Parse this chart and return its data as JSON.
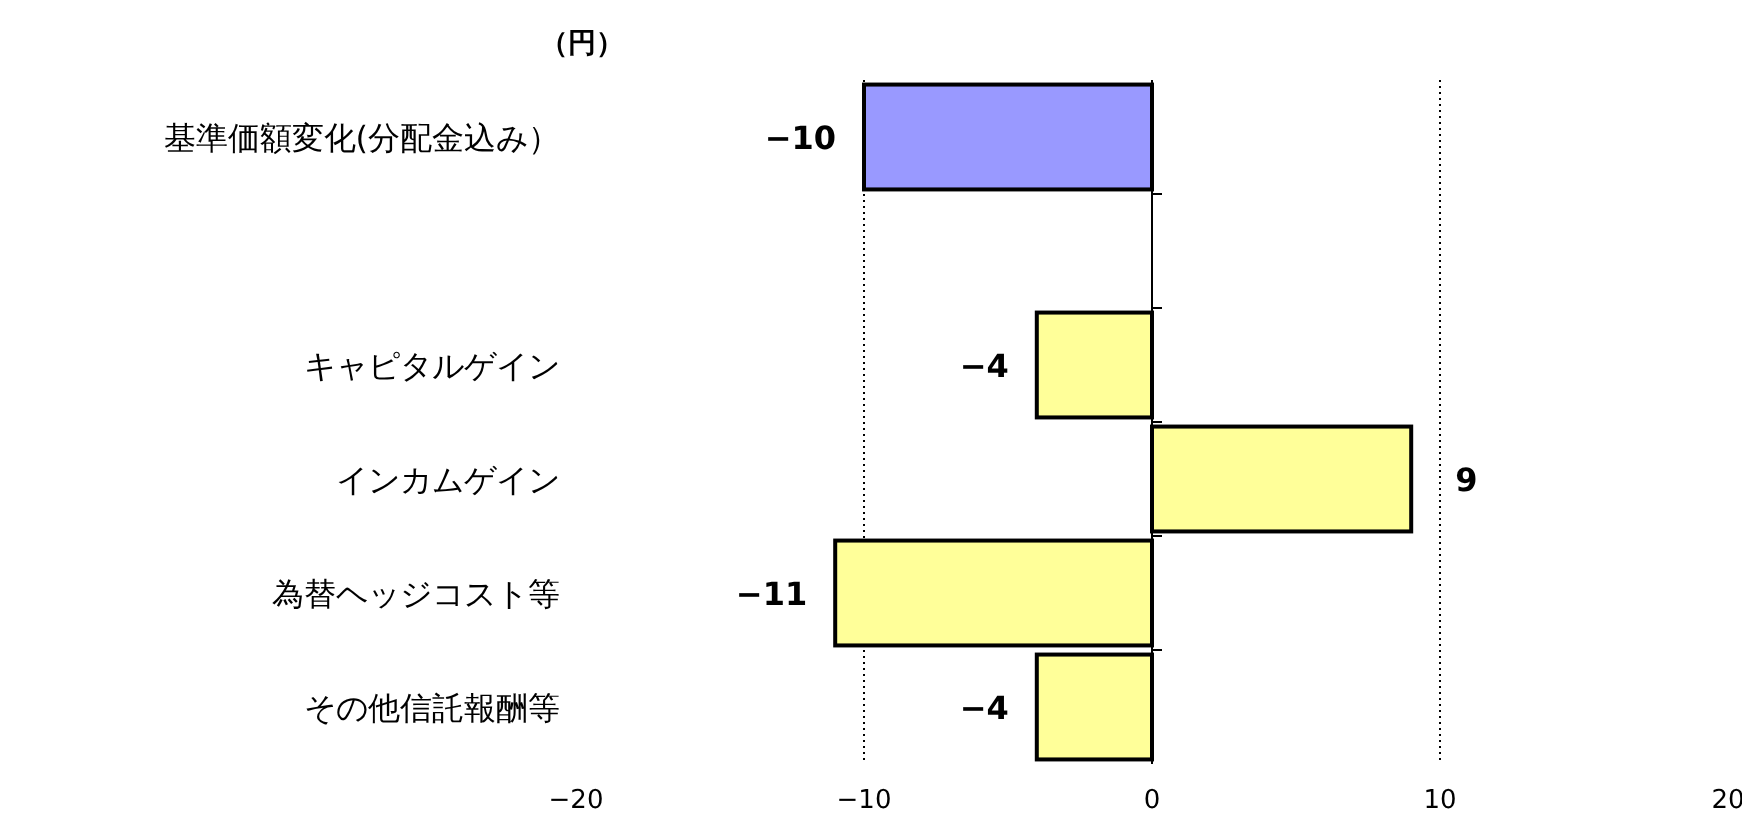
{
  "chart_data": {
    "type": "bar",
    "orientation": "horizontal",
    "xlabel": "（円）",
    "categories": [
      "基準価額変化(分配金込み）",
      null,
      "キャピタルゲイン",
      "インカムゲイン",
      "為替ヘッジコスト等",
      "その他信託報酬等"
    ],
    "values": [
      -10,
      null,
      -4,
      9,
      -11,
      -4
    ],
    "colors": [
      "#9999ff",
      null,
      "#ffff99",
      "#ffff99",
      "#ffff99",
      "#ffff99"
    ],
    "xlim": [
      -20,
      20
    ],
    "xticks": [
      -20,
      -10,
      0,
      10,
      20
    ],
    "grid": "x",
    "data_labels": true
  }
}
